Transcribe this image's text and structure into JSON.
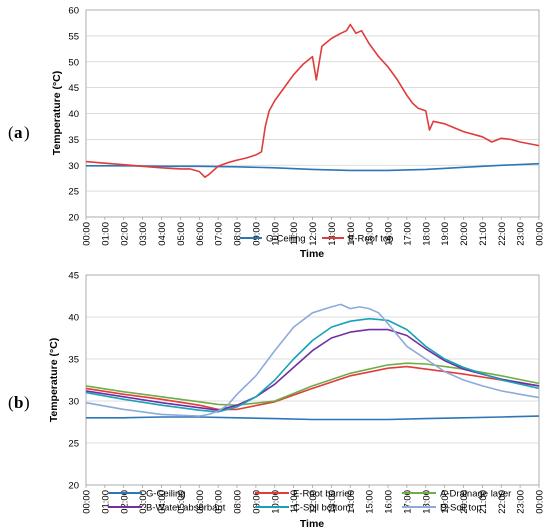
{
  "chart_data": [
    {
      "panel_label": "a",
      "type": "line",
      "xlabel": "Time",
      "ylabel": "Temperature (°C)",
      "ylim": [
        20,
        60
      ],
      "yticks": [
        20,
        25,
        30,
        35,
        40,
        45,
        50,
        55,
        60
      ],
      "xticks": [
        "00:00",
        "01:00",
        "02:00",
        "03:00",
        "04:00",
        "05:00",
        "06:00",
        "07:00",
        "08:00",
        "09:00",
        "10:00",
        "11:00",
        "12:00",
        "13:00",
        "14:00",
        "15:00",
        "16:00",
        "17:00",
        "18:00",
        "19:00",
        "20:00",
        "21:00",
        "22:00",
        "23:00",
        "00:00"
      ],
      "grid": "horizontal",
      "legend": "bottom",
      "series": [
        {
          "name": "G-Ceiling",
          "color": "#2e75b6",
          "x": [
            0,
            2,
            4,
            6,
            8,
            10,
            12,
            14,
            16,
            18,
            20,
            22,
            24
          ],
          "y": [
            29.9,
            29.9,
            29.8,
            29.8,
            29.7,
            29.5,
            29.2,
            29.0,
            29.0,
            29.2,
            29.6,
            30.0,
            30.3
          ]
        },
        {
          "name": "E-Roof top",
          "color": "#e03c3c",
          "x": [
            0,
            1,
            2,
            3,
            4,
            5,
            5.5,
            6,
            6.3,
            6.5,
            7,
            7.5,
            8,
            8.5,
            9,
            9.3,
            9.5,
            9.7,
            10,
            10.5,
            11,
            11.5,
            12,
            12.2,
            12.5,
            13,
            13.5,
            13.8,
            14,
            14.3,
            14.6,
            15,
            15.5,
            16,
            16.5,
            17,
            17.3,
            17.6,
            18,
            18.2,
            18.4,
            19,
            20,
            21,
            21.5,
            22,
            22.5,
            23,
            24
          ],
          "y": [
            30.7,
            30.4,
            30.1,
            29.8,
            29.5,
            29.3,
            29.3,
            28.8,
            27.7,
            28.2,
            29.8,
            30.5,
            31.0,
            31.4,
            32.0,
            32.6,
            37.5,
            40.5,
            42.5,
            45.0,
            47.5,
            49.5,
            51.0,
            46.5,
            53.0,
            54.5,
            55.5,
            56.0,
            57.2,
            55.5,
            56.0,
            53.5,
            51.0,
            49.0,
            46.5,
            43.5,
            42.0,
            41.0,
            40.5,
            36.8,
            38.5,
            38.0,
            36.5,
            35.5,
            34.5,
            35.2,
            35.0,
            34.5,
            33.8
          ]
        }
      ]
    },
    {
      "panel_label": "b",
      "type": "line",
      "xlabel": "Time",
      "ylabel": "Temperature (°C)",
      "ylim": [
        20,
        45
      ],
      "yticks": [
        20,
        25,
        30,
        35,
        40,
        45
      ],
      "xticks": [
        "00:00",
        "01:00",
        "02:00",
        "03:00",
        "04:00",
        "05:00",
        "06:00",
        "07:00",
        "08:00",
        "09:00",
        "10:00",
        "11:00",
        "12:00",
        "13:00",
        "14:00",
        "15:00",
        "16:00",
        "17:00",
        "18:00",
        "19:00",
        "20:00",
        "21:00",
        "22:00",
        "23:00",
        "00:00"
      ],
      "grid": "horizontal",
      "legend": "bottom",
      "series": [
        {
          "name": "G-Ceiling",
          "color": "#2e75b6",
          "x": [
            0,
            2,
            4,
            6,
            8,
            10,
            12,
            14,
            16,
            18,
            20,
            22,
            24
          ],
          "y": [
            28.0,
            28.0,
            28.1,
            28.1,
            28.0,
            27.9,
            27.8,
            27.8,
            27.8,
            27.9,
            28.0,
            28.1,
            28.2
          ]
        },
        {
          "name": "E-Root barrier",
          "color": "#e03c3c",
          "x": [
            0,
            2,
            4,
            6,
            7,
            8,
            10,
            12,
            14,
            16,
            17,
            18,
            20,
            22,
            24
          ],
          "y": [
            31.5,
            30.8,
            30.2,
            29.5,
            29.0,
            29.0,
            29.9,
            31.5,
            33.0,
            33.9,
            34.1,
            33.8,
            33.2,
            32.5,
            31.8
          ]
        },
        {
          "name": "A-Drainage layer",
          "color": "#70ad47",
          "x": [
            0,
            2,
            4,
            6,
            7,
            8,
            10,
            12,
            14,
            16,
            17,
            18,
            20,
            22,
            24
          ],
          "y": [
            31.8,
            31.1,
            30.5,
            29.9,
            29.6,
            29.5,
            30.0,
            31.8,
            33.3,
            34.3,
            34.5,
            34.4,
            33.8,
            33.0,
            32.1
          ]
        },
        {
          "name": "B-Water absorbant",
          "color": "#7030a0",
          "x": [
            0,
            2,
            4,
            6,
            7,
            8,
            9,
            10,
            11,
            12,
            13,
            14,
            15,
            16,
            17,
            18,
            19,
            20,
            22,
            24
          ],
          "y": [
            31.2,
            30.5,
            29.8,
            29.2,
            28.9,
            29.5,
            30.5,
            32.0,
            34.0,
            36.0,
            37.5,
            38.2,
            38.5,
            38.5,
            37.8,
            36.2,
            34.8,
            33.8,
            32.6,
            31.8
          ]
        },
        {
          "name": "C-Soil bottom",
          "color": "#17a2b8",
          "x": [
            0,
            2,
            4,
            6,
            7,
            8,
            9,
            10,
            11,
            12,
            13,
            14,
            15,
            16,
            17,
            18,
            19,
            20,
            22,
            24
          ],
          "y": [
            31.0,
            30.2,
            29.5,
            28.9,
            28.7,
            29.3,
            30.5,
            32.5,
            35.0,
            37.2,
            38.8,
            39.5,
            39.8,
            39.6,
            38.5,
            36.5,
            35.0,
            34.0,
            32.5,
            31.5
          ]
        },
        {
          "name": "D-Soil top",
          "color": "#8eaadb",
          "x": [
            0,
            2,
            4,
            5,
            6,
            6.5,
            7,
            7.5,
            8,
            9,
            10,
            11,
            12,
            13,
            13.5,
            14,
            14.5,
            15,
            15.5,
            16,
            17,
            18,
            19,
            20,
            21,
            22,
            23,
            24
          ],
          "y": [
            29.8,
            29.0,
            28.4,
            28.3,
            28.2,
            28.4,
            28.8,
            29.5,
            30.8,
            33.0,
            36.0,
            38.8,
            40.5,
            41.2,
            41.5,
            41.0,
            41.2,
            41.0,
            40.5,
            39.2,
            36.5,
            35.0,
            33.5,
            32.5,
            31.8,
            31.2,
            30.8,
            30.4
          ]
        }
      ]
    }
  ]
}
